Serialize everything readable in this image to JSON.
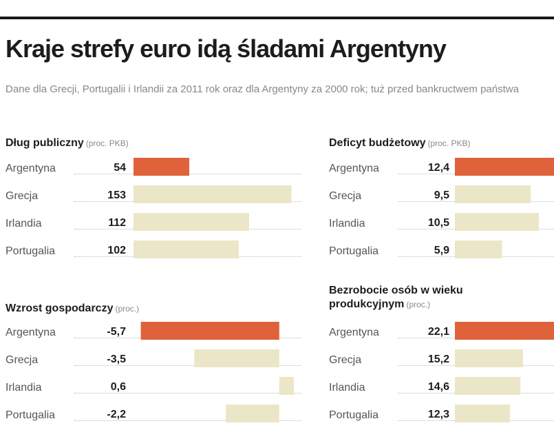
{
  "title": "Kraje strefy euro idą śladami Argentyny",
  "subtitle": "Dane dla Grecji, Portugalii i Irlandii za 2011 rok oraz dla Argentyny za 2000 rok; tuż przed bankructwem państwa",
  "chart_data": [
    {
      "type": "bar",
      "title": "Dług publiczny",
      "unit": "(proc. PKB)",
      "categories": [
        "Argentyna",
        "Grecja",
        "Irlandia",
        "Portugalia"
      ],
      "values": [
        54,
        153,
        112,
        102
      ],
      "value_labels": [
        "54",
        "153",
        "112",
        "102"
      ],
      "xlim": [
        0,
        160
      ],
      "colors": [
        "#e0623a",
        "#ece6c8",
        "#ece6c8",
        "#ece6c8"
      ]
    },
    {
      "type": "bar",
      "title": "Deficyt budżetowy",
      "unit": "(proc. PKB)",
      "categories": [
        "Argentyna",
        "Grecja",
        "Irlandia",
        "Portugalia"
      ],
      "values": [
        12.4,
        9.5,
        10.5,
        5.9
      ],
      "value_labels": [
        "12,4",
        "9,5",
        "10,5",
        "5,9"
      ],
      "xlim": [
        0,
        12.4
      ],
      "colors": [
        "#e0623a",
        "#ece6c8",
        "#ece6c8",
        "#ece6c8"
      ]
    },
    {
      "type": "bar",
      "title": "Wzrost gospodarczy",
      "unit": "(proc.)",
      "categories": [
        "Argentyna",
        "Grecja",
        "Irlandia",
        "Portugalia"
      ],
      "values": [
        -5.7,
        -3.5,
        0.6,
        -2.2
      ],
      "value_labels": [
        "-5,7",
        "-3,5",
        "0,6",
        "-2,2"
      ],
      "xlim": [
        -6,
        0.8
      ],
      "colors": [
        "#e0623a",
        "#ece6c8",
        "#ece6c8",
        "#ece6c8"
      ]
    },
    {
      "type": "bar",
      "title": "Bezrobocie osób w wieku produkcyjnym",
      "unit": "(proc.)",
      "categories": [
        "Argentyna",
        "Grecja",
        "Irlandia",
        "Portugalia"
      ],
      "values": [
        22.1,
        15.2,
        14.6,
        12.3
      ],
      "value_labels": [
        "22,1",
        "15,2",
        "14,6",
        "12,3"
      ],
      "xlim": [
        0,
        22.1
      ],
      "colors": [
        "#e0623a",
        "#ece6c8",
        "#ece6c8",
        "#ece6c8"
      ]
    }
  ]
}
